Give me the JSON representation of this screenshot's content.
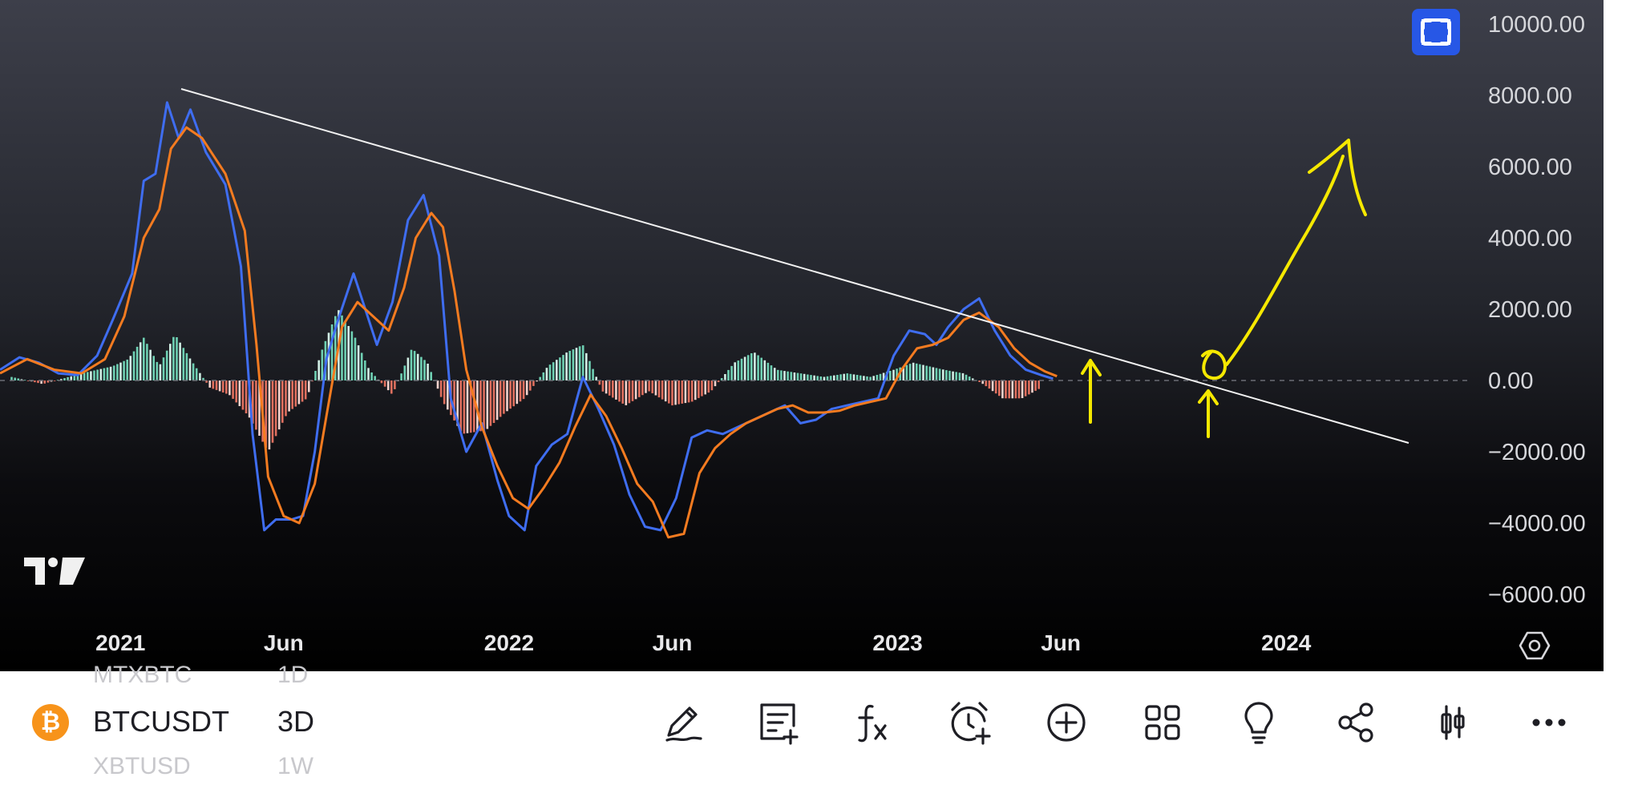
{
  "chart_data": {
    "type": "line",
    "indicator": "MACD",
    "ylim": [
      -6000,
      10000
    ],
    "y_ticks": [
      "10000.00",
      "8000.00",
      "6000.00",
      "4000.00",
      "2000.00",
      "0.00",
      "−2000.00",
      "−4000.00",
      "−6000.00"
    ],
    "y_tick_values": [
      10000,
      8000,
      6000,
      4000,
      2000,
      0,
      -2000,
      -4000,
      -6000
    ],
    "x_ticks": [
      {
        "label": "2021",
        "t": 2021.0
      },
      {
        "label": "Jun",
        "t": 2021.42
      },
      {
        "label": "2022",
        "t": 2022.0
      },
      {
        "label": "Jun",
        "t": 2022.42
      },
      {
        "label": "2023",
        "t": 2023.0
      },
      {
        "label": "Jun",
        "t": 2023.42
      },
      {
        "label": "2024",
        "t": 2024.0
      }
    ],
    "x_range": [
      2020.69,
      2024.47
    ],
    "series": [
      {
        "color": "#3f6df0",
        "points": [
          [
            2020.69,
            300
          ],
          [
            2020.74,
            650
          ],
          [
            2020.79,
            500
          ],
          [
            2020.84,
            200
          ],
          [
            2020.89,
            150
          ],
          [
            2020.94,
            700
          ],
          [
            2020.98,
            1700
          ],
          [
            2021.03,
            3000
          ],
          [
            2021.06,
            5600
          ],
          [
            2021.09,
            5800
          ],
          [
            2021.12,
            7800
          ],
          [
            2021.15,
            6800
          ],
          [
            2021.18,
            7600
          ],
          [
            2021.22,
            6400
          ],
          [
            2021.27,
            5500
          ],
          [
            2021.31,
            3200
          ],
          [
            2021.34,
            -1500
          ],
          [
            2021.37,
            -4200
          ],
          [
            2021.4,
            -3900
          ],
          [
            2021.44,
            -3900
          ],
          [
            2021.47,
            -3800
          ],
          [
            2021.5,
            -2000
          ],
          [
            2021.53,
            600
          ],
          [
            2021.56,
            1700
          ],
          [
            2021.6,
            3000
          ],
          [
            2021.63,
            2000
          ],
          [
            2021.66,
            1000
          ],
          [
            2021.7,
            2200
          ],
          [
            2021.74,
            4500
          ],
          [
            2021.78,
            5200
          ],
          [
            2021.82,
            3500
          ],
          [
            2021.85,
            -500
          ],
          [
            2021.89,
            -2000
          ],
          [
            2021.93,
            -1200
          ],
          [
            2021.97,
            -2800
          ],
          [
            2022.0,
            -3800
          ],
          [
            2022.04,
            -4200
          ],
          [
            2022.07,
            -2400
          ],
          [
            2022.11,
            -1800
          ],
          [
            2022.15,
            -1500
          ],
          [
            2022.19,
            100
          ],
          [
            2022.23,
            -800
          ],
          [
            2022.27,
            -1800
          ],
          [
            2022.31,
            -3200
          ],
          [
            2022.35,
            -4100
          ],
          [
            2022.39,
            -4200
          ],
          [
            2022.43,
            -3300
          ],
          [
            2022.47,
            -1600
          ],
          [
            2022.51,
            -1400
          ],
          [
            2022.55,
            -1500
          ],
          [
            2022.59,
            -1300
          ],
          [
            2022.63,
            -1100
          ],
          [
            2022.67,
            -900
          ],
          [
            2022.71,
            -700
          ],
          [
            2022.75,
            -1200
          ],
          [
            2022.79,
            -1100
          ],
          [
            2022.83,
            -800
          ],
          [
            2022.87,
            -700
          ],
          [
            2022.91,
            -600
          ],
          [
            2022.95,
            -500
          ],
          [
            2022.99,
            700
          ],
          [
            2023.03,
            1400
          ],
          [
            2023.07,
            1300
          ],
          [
            2023.1,
            1000
          ],
          [
            2023.13,
            1500
          ],
          [
            2023.17,
            2000
          ],
          [
            2023.21,
            2300
          ],
          [
            2023.25,
            1400
          ],
          [
            2023.29,
            700
          ],
          [
            2023.33,
            300
          ],
          [
            2023.37,
            150
          ],
          [
            2023.4,
            50
          ]
        ]
      },
      {
        "color": "#f47b20",
        "points": [
          [
            2020.69,
            200
          ],
          [
            2020.76,
            600
          ],
          [
            2020.83,
            300
          ],
          [
            2020.9,
            200
          ],
          [
            2020.96,
            600
          ],
          [
            2021.01,
            1800
          ],
          [
            2021.06,
            4000
          ],
          [
            2021.1,
            4800
          ],
          [
            2021.13,
            6500
          ],
          [
            2021.17,
            7100
          ],
          [
            2021.21,
            6800
          ],
          [
            2021.27,
            5800
          ],
          [
            2021.32,
            4200
          ],
          [
            2021.35,
            1000
          ],
          [
            2021.38,
            -2700
          ],
          [
            2021.42,
            -3800
          ],
          [
            2021.46,
            -4000
          ],
          [
            2021.5,
            -2900
          ],
          [
            2021.53,
            -1000
          ],
          [
            2021.57,
            1500
          ],
          [
            2021.61,
            2200
          ],
          [
            2021.65,
            1800
          ],
          [
            2021.69,
            1400
          ],
          [
            2021.73,
            2600
          ],
          [
            2021.76,
            4000
          ],
          [
            2021.8,
            4700
          ],
          [
            2021.83,
            4300
          ],
          [
            2021.86,
            2500
          ],
          [
            2021.89,
            300
          ],
          [
            2021.93,
            -1300
          ],
          [
            2021.97,
            -2400
          ],
          [
            2022.01,
            -3300
          ],
          [
            2022.05,
            -3600
          ],
          [
            2022.09,
            -3000
          ],
          [
            2022.13,
            -2300
          ],
          [
            2022.17,
            -1300
          ],
          [
            2022.21,
            -400
          ],
          [
            2022.25,
            -1000
          ],
          [
            2022.29,
            -1900
          ],
          [
            2022.33,
            -2900
          ],
          [
            2022.37,
            -3400
          ],
          [
            2022.41,
            -4400
          ],
          [
            2022.45,
            -4300
          ],
          [
            2022.49,
            -2600
          ],
          [
            2022.53,
            -1900
          ],
          [
            2022.57,
            -1500
          ],
          [
            2022.61,
            -1200
          ],
          [
            2022.65,
            -1000
          ],
          [
            2022.69,
            -800
          ],
          [
            2022.73,
            -700
          ],
          [
            2022.77,
            -900
          ],
          [
            2022.81,
            -900
          ],
          [
            2022.85,
            -850
          ],
          [
            2022.89,
            -700
          ],
          [
            2022.93,
            -600
          ],
          [
            2022.97,
            -500
          ],
          [
            2023.01,
            300
          ],
          [
            2023.05,
            900
          ],
          [
            2023.09,
            1000
          ],
          [
            2023.13,
            1200
          ],
          [
            2023.17,
            1700
          ],
          [
            2023.21,
            1900
          ],
          [
            2023.26,
            1500
          ],
          [
            2023.3,
            900
          ],
          [
            2023.34,
            500
          ],
          [
            2023.38,
            250
          ],
          [
            2023.41,
            120
          ]
        ]
      }
    ],
    "histogram": [
      [
        2020.72,
        100
      ],
      [
        2020.8,
        -100
      ],
      [
        2020.9,
        200
      ],
      [
        2020.98,
        400
      ],
      [
        2021.02,
        600
      ],
      [
        2021.06,
        1200
      ],
      [
        2021.1,
        400
      ],
      [
        2021.14,
        1300
      ],
      [
        2021.18,
        600
      ],
      [
        2021.23,
        -200
      ],
      [
        2021.28,
        -400
      ],
      [
        2021.33,
        -1000
      ],
      [
        2021.38,
        -2000
      ],
      [
        2021.43,
        -900
      ],
      [
        2021.48,
        -500
      ],
      [
        2021.52,
        900
      ],
      [
        2021.56,
        2000
      ],
      [
        2021.6,
        1300
      ],
      [
        2021.64,
        300
      ],
      [
        2021.7,
        -400
      ],
      [
        2021.75,
        900
      ],
      [
        2021.79,
        500
      ],
      [
        2021.83,
        -600
      ],
      [
        2021.88,
        -1500
      ],
      [
        2021.94,
        -1400
      ],
      [
        2021.99,
        -900
      ],
      [
        2022.04,
        -500
      ],
      [
        2022.1,
        400
      ],
      [
        2022.15,
        800
      ],
      [
        2022.19,
        1000
      ],
      [
        2022.24,
        -300
      ],
      [
        2022.3,
        -700
      ],
      [
        2022.36,
        -300
      ],
      [
        2022.42,
        -700
      ],
      [
        2022.47,
        -600
      ],
      [
        2022.52,
        -300
      ],
      [
        2022.58,
        500
      ],
      [
        2022.63,
        800
      ],
      [
        2022.69,
        300
      ],
      [
        2022.75,
        200
      ],
      [
        2022.81,
        100
      ],
      [
        2022.87,
        200
      ],
      [
        2022.93,
        100
      ],
      [
        2022.99,
        300
      ],
      [
        2023.04,
        500
      ],
      [
        2023.08,
        400
      ],
      [
        2023.12,
        300
      ],
      [
        2023.17,
        200
      ],
      [
        2023.22,
        -100
      ],
      [
        2023.27,
        -500
      ],
      [
        2023.32,
        -500
      ],
      [
        2023.37,
        -200
      ]
    ]
  },
  "toolbar": {
    "symbol_icon_glyph": "₿",
    "symbol": "BTCUSDT",
    "interval": "3D",
    "prev_symbol": "MTXBTC",
    "prev_interval": "1D",
    "next_symbol": "XBTUSD",
    "next_interval": "1W"
  },
  "colors": {
    "macd_line": "#3f6df0",
    "signal_line": "#f47b20",
    "hist_positive": "#6fd1b4",
    "hist_negative": "#e0705f",
    "annotation": "#f5e800",
    "trendline": "#f2f2f2",
    "fullscreen_button": "#2757e6"
  },
  "icons": [
    "fullscreen-icon",
    "settings-hexagon-icon",
    "tradingview-logo",
    "pencil-draw-icon",
    "note-add-icon",
    "fx-indicator-icon",
    "alarm-add-icon",
    "plus-circle-icon",
    "grid-layout-icon",
    "lightbulb-icon",
    "share-icon",
    "candlestick-icon",
    "more-dots-icon"
  ]
}
